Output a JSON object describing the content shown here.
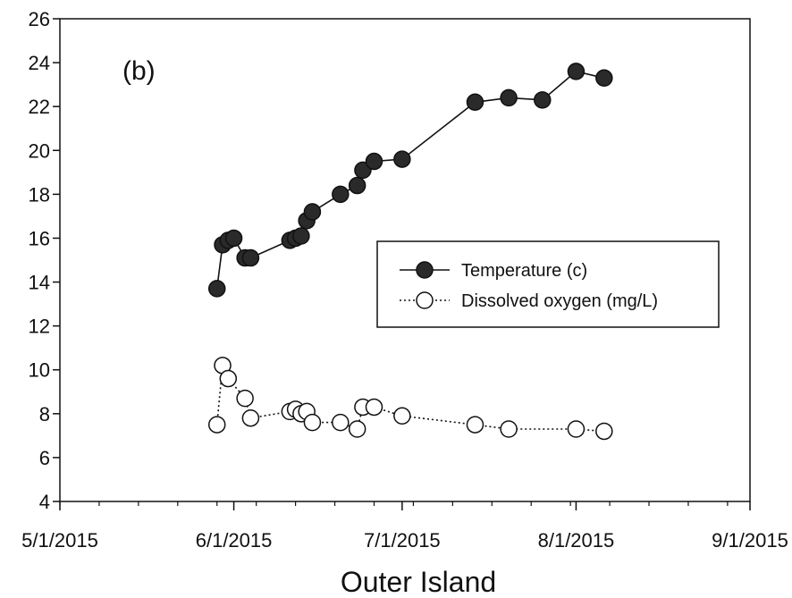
{
  "chart_data": {
    "type": "line",
    "title": "Outer Island",
    "panel_label": "(b)",
    "xlabel": "",
    "ylabel": "",
    "x_ticks": [
      "5/1/2015",
      "6/1/2015",
      "7/1/2015",
      "8/1/2015",
      "9/1/2015"
    ],
    "xlim": [
      "2015-05-01",
      "2015-09-01"
    ],
    "ylim": [
      4,
      26
    ],
    "y_ticks": [
      4,
      6,
      8,
      10,
      12,
      14,
      16,
      18,
      20,
      22,
      24,
      26
    ],
    "grid": false,
    "legend_position": "right-middle",
    "series": [
      {
        "name": "Temperature (c)",
        "marker": "filled-circle",
        "line": "solid",
        "color": "#111111",
        "points": [
          {
            "x": "2015-05-29",
            "y": 13.7
          },
          {
            "x": "2015-05-30",
            "y": 15.7
          },
          {
            "x": "2015-05-31",
            "y": 15.9
          },
          {
            "x": "2015-06-01",
            "y": 16.0
          },
          {
            "x": "2015-06-03",
            "y": 15.1
          },
          {
            "x": "2015-06-04",
            "y": 15.1
          },
          {
            "x": "2015-06-11",
            "y": 15.9
          },
          {
            "x": "2015-06-12",
            "y": 16.0
          },
          {
            "x": "2015-06-13",
            "y": 16.1
          },
          {
            "x": "2015-06-14",
            "y": 16.8
          },
          {
            "x": "2015-06-15",
            "y": 17.2
          },
          {
            "x": "2015-06-20",
            "y": 18.0
          },
          {
            "x": "2015-06-23",
            "y": 18.4
          },
          {
            "x": "2015-06-24",
            "y": 19.1
          },
          {
            "x": "2015-06-26",
            "y": 19.5
          },
          {
            "x": "2015-07-01",
            "y": 19.6
          },
          {
            "x": "2015-07-14",
            "y": 22.2
          },
          {
            "x": "2015-07-20",
            "y": 22.4
          },
          {
            "x": "2015-07-26",
            "y": 22.3
          },
          {
            "x": "2015-08-01",
            "y": 23.6
          },
          {
            "x": "2015-08-06",
            "y": 23.3
          }
        ]
      },
      {
        "name": "Dissolved oxygen (mg/L)",
        "marker": "open-circle",
        "line": "dotted",
        "color": "#111111",
        "points": [
          {
            "x": "2015-05-29",
            "y": 7.5
          },
          {
            "x": "2015-05-30",
            "y": 10.2
          },
          {
            "x": "2015-05-31",
            "y": 9.6
          },
          {
            "x": "2015-06-03",
            "y": 8.7
          },
          {
            "x": "2015-06-04",
            "y": 7.8
          },
          {
            "x": "2015-06-11",
            "y": 8.1
          },
          {
            "x": "2015-06-12",
            "y": 8.2
          },
          {
            "x": "2015-06-13",
            "y": 8.0
          },
          {
            "x": "2015-06-14",
            "y": 8.1
          },
          {
            "x": "2015-06-15",
            "y": 7.6
          },
          {
            "x": "2015-06-20",
            "y": 7.6
          },
          {
            "x": "2015-06-23",
            "y": 7.3
          },
          {
            "x": "2015-06-24",
            "y": 8.3
          },
          {
            "x": "2015-06-26",
            "y": 8.3
          },
          {
            "x": "2015-07-01",
            "y": 7.9
          },
          {
            "x": "2015-07-14",
            "y": 7.5
          },
          {
            "x": "2015-07-20",
            "y": 7.3
          },
          {
            "x": "2015-08-01",
            "y": 7.3
          },
          {
            "x": "2015-08-06",
            "y": 7.2
          }
        ]
      }
    ]
  }
}
